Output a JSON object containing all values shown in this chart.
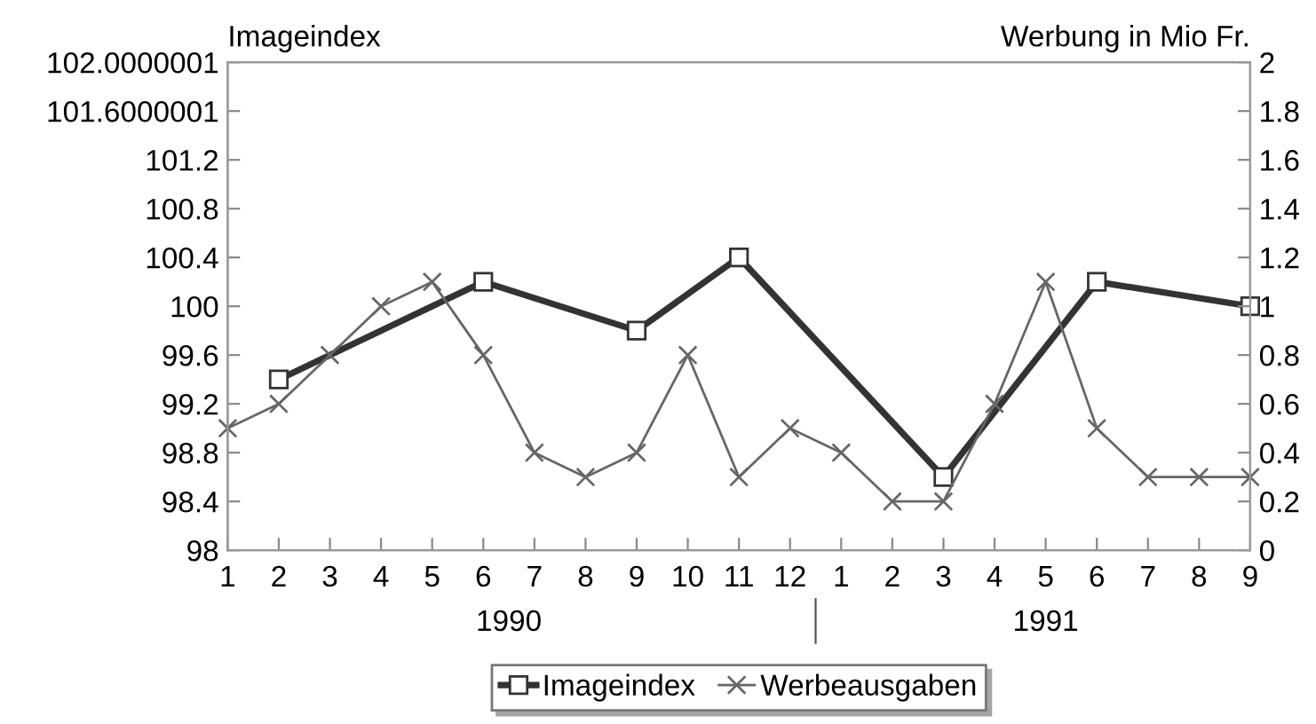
{
  "chart_data": {
    "type": "line",
    "ylabel": "Imageindex",
    "y2label": "Werbung in Mio Fr.",
    "categories": [
      "1",
      "2",
      "3",
      "4",
      "5",
      "6",
      "7",
      "8",
      "9",
      "10",
      "11",
      "12",
      "1",
      "2",
      "3",
      "4",
      "5",
      "6",
      "7",
      "8",
      "9"
    ],
    "series": [
      {
        "name": "Imageindex",
        "color": "#333333",
        "marker": "square",
        "values": [
          null,
          99.4,
          null,
          null,
          null,
          100.2,
          null,
          null,
          99.8,
          null,
          100.4,
          null,
          null,
          null,
          98.6,
          null,
          null,
          100.2,
          null,
          null,
          100.0
        ]
      },
      {
        "name": "Werbeausgaben",
        "color": "#666666",
        "marker": "cross",
        "axis": "y2",
        "values": [
          0.5,
          0.6,
          0.8,
          1.0,
          1.1,
          0.8,
          0.4,
          0.3,
          0.4,
          0.8,
          0.3,
          0.5,
          0.4,
          0.2,
          0.2,
          0.6,
          1.1,
          0.5,
          0.3,
          0.3,
          0.3
        ]
      }
    ],
    "ylim": [
      98,
      102
    ],
    "yticks": [
      98,
      98.4,
      98.8,
      99.2,
      99.6,
      100,
      100.4,
      100.8,
      101.2,
      101.6000001,
      102.0000001
    ],
    "y2lim": [
      0,
      2
    ],
    "y2ticks": [
      0,
      0.2,
      0.4,
      0.6,
      0.8,
      1,
      1.2,
      1.4,
      1.6,
      1.8,
      2
    ],
    "annotations": [
      "1990",
      "1991"
    ],
    "grid": false,
    "legend": "bottom",
    "line_style": "solid"
  }
}
